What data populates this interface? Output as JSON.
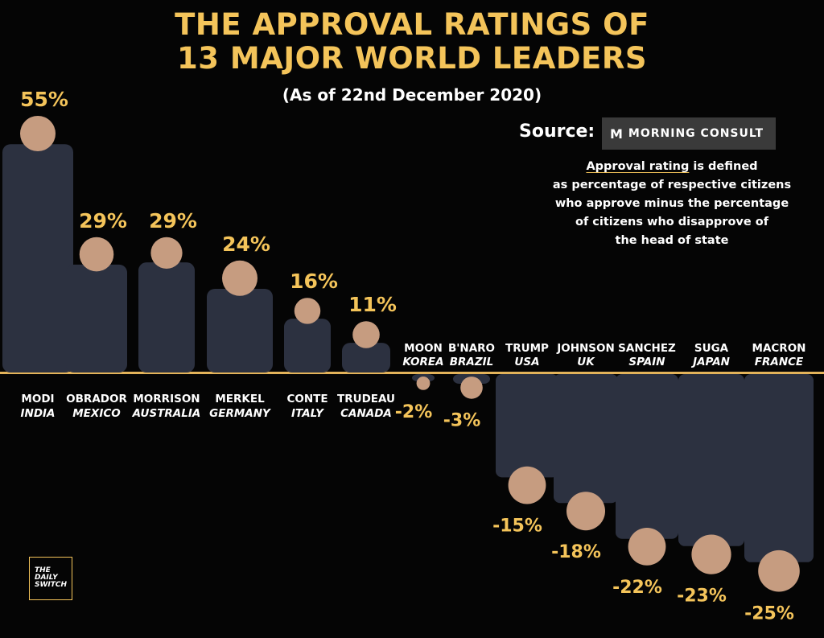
{
  "header": {
    "title_line1": "THE APPROVAL RATINGS OF",
    "title_line2": "13 MAJOR WORLD LEADERS",
    "subtitle": "(As of 22nd December 2020)"
  },
  "source": {
    "label": "Source:",
    "logo_glyph": "M",
    "name": "MORNING CONSULT"
  },
  "definition": {
    "term": "Approval rating",
    "rest_line1": " is defined",
    "line2": "as percentage of respective citizens",
    "line3": "who approve minus the percentage",
    "line4": "of citizens who disapprove of",
    "line5": "the head of state"
  },
  "branding": {
    "line1": "THE",
    "line2": "DAILY",
    "line3": "SWITCH"
  },
  "colors": {
    "accent": "#F4C45A",
    "baseline": "#E3B35A",
    "background": "#050505",
    "text": "#ffffff"
  },
  "chart_data": {
    "type": "bar",
    "categories": [
      "MODI",
      "OBRADOR",
      "MORRISON",
      "MERKEL",
      "CONTE",
      "TRUDEAU",
      "MOON",
      "B'NARO",
      "TRUMP",
      "JOHNSON",
      "SANCHEZ",
      "SUGA",
      "MACRON"
    ],
    "countries": [
      "INDIA",
      "MEXICO",
      "AUSTRALIA",
      "GERMANY",
      "ITALY",
      "CANADA",
      "KOREA",
      "BRAZIL",
      "USA",
      "UK",
      "SPAIN",
      "JAPAN",
      "FRANCE"
    ],
    "values": [
      55,
      29,
      29,
      24,
      16,
      11,
      -2,
      -3,
      -15,
      -18,
      -22,
      -23,
      -25
    ],
    "labels": [
      "55%",
      "29%",
      "29%",
      "24%",
      "16%",
      "11%",
      "-2%",
      "-3%",
      "-15%",
      "-18%",
      "-22%",
      "-23%",
      "-25%"
    ],
    "title": "THE APPROVAL RATINGS OF 13 MAJOR WORLD LEADERS",
    "ylim": [
      -25,
      55
    ]
  }
}
